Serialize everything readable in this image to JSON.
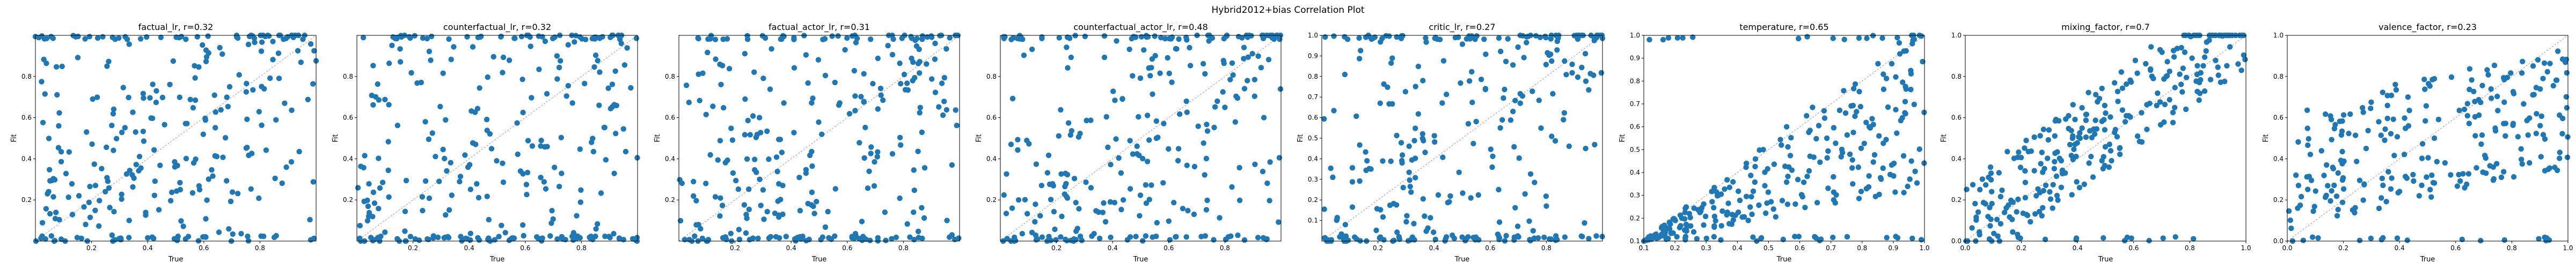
{
  "suptitle": "Hybrid2012+bias Correlation Plot",
  "colors": {
    "points": "#1f77b4",
    "diagonal": "#999999",
    "axes": "#000000"
  },
  "chart_data": [
    {
      "type": "scatter",
      "title": "factual_lr, r=0.32",
      "xlabel": "True",
      "ylabel": "Fit",
      "xlim": [
        0.0,
        1.0
      ],
      "ylim": [
        0.0,
        1.0
      ],
      "xticks": [
        0.2,
        0.4,
        0.6,
        0.8
      ],
      "yticks": [
        0.2,
        0.4,
        0.6,
        0.8
      ],
      "diagonal": true,
      "r": 0.32,
      "n_points": 300,
      "seed": 11,
      "pattern": "banded",
      "points": []
    },
    {
      "type": "scatter",
      "title": "counterfactual_lr, r=0.32",
      "xlabel": "True",
      "ylabel": "Fit",
      "xlim": [
        0.0,
        1.0
      ],
      "ylim": [
        0.0,
        1.0
      ],
      "xticks": [
        0.2,
        0.4,
        0.6,
        0.8
      ],
      "yticks": [
        0.2,
        0.4,
        0.6,
        0.8
      ],
      "diagonal": true,
      "r": 0.32,
      "n_points": 300,
      "seed": 23,
      "pattern": "banded",
      "points": []
    },
    {
      "type": "scatter",
      "title": "factual_actor_lr, r=0.31",
      "xlabel": "True",
      "ylabel": "Fit",
      "xlim": [
        0.0,
        1.0
      ],
      "ylim": [
        0.0,
        1.0
      ],
      "xticks": [
        0.2,
        0.4,
        0.6,
        0.8
      ],
      "yticks": [
        0.2,
        0.4,
        0.6,
        0.8
      ],
      "diagonal": true,
      "r": 0.31,
      "n_points": 300,
      "seed": 37,
      "pattern": "banded",
      "points": []
    },
    {
      "type": "scatter",
      "title": "counterfactual_actor_lr, r=0.48",
      "xlabel": "True",
      "ylabel": "Fit",
      "xlim": [
        0.0,
        1.0
      ],
      "ylim": [
        0.0,
        1.0
      ],
      "xticks": [
        0.2,
        0.4,
        0.6,
        0.8
      ],
      "yticks": [
        0.2,
        0.4,
        0.6,
        0.8
      ],
      "diagonal": true,
      "r": 0.48,
      "n_points": 300,
      "seed": 41,
      "pattern": "banded",
      "points": []
    },
    {
      "type": "scatter",
      "title": "critic_lr, r=0.27",
      "xlabel": "True",
      "ylabel": "Fit",
      "xlim": [
        0.0,
        1.0
      ],
      "ylim": [
        0.0,
        1.0
      ],
      "xticks": [
        0.2,
        0.4,
        0.6,
        0.8
      ],
      "yticks": [
        0.1,
        0.2,
        0.3,
        0.4,
        0.5,
        0.6,
        0.7,
        0.8,
        0.9,
        1.0
      ],
      "diagonal": true,
      "r": 0.27,
      "n_points": 300,
      "seed": 53,
      "pattern": "banded",
      "points": []
    },
    {
      "type": "scatter",
      "title": "temperature, r=0.65",
      "xlabel": "True",
      "ylabel": "Fit",
      "xlim": [
        0.1,
        1.0
      ],
      "ylim": [
        0.1,
        1.0
      ],
      "xticks": [
        0.1,
        0.2,
        0.3,
        0.4,
        0.5,
        0.6,
        0.7,
        0.8,
        0.9,
        1.0
      ],
      "yticks": [
        0.1,
        0.2,
        0.3,
        0.4,
        0.5,
        0.6,
        0.7,
        0.8,
        0.9,
        1.0
      ],
      "diagonal": true,
      "r": 0.65,
      "n_points": 300,
      "seed": 67,
      "pattern": "lower",
      "points": []
    },
    {
      "type": "scatter",
      "title": "mixing_factor, r=0.7",
      "xlabel": "True",
      "ylabel": "Fit",
      "xlim": [
        0.0,
        1.0
      ],
      "ylim": [
        0.0,
        1.0
      ],
      "xticks": [
        0.0,
        0.2,
        0.4,
        0.6,
        0.8,
        1.0
      ],
      "yticks": [
        0.0,
        0.2,
        0.4,
        0.6,
        0.8,
        1.0
      ],
      "diagonal": true,
      "r": 0.7,
      "n_points": 300,
      "seed": 79,
      "pattern": "tight",
      "points": []
    },
    {
      "type": "scatter",
      "title": "valence_factor, r=0.23",
      "xlabel": "True",
      "ylabel": "Fit",
      "xlim": [
        0.0,
        1.0
      ],
      "ylim": [
        0.0,
        1.0
      ],
      "xticks": [
        0.0,
        0.2,
        0.4,
        0.6,
        0.8,
        1.0
      ],
      "yticks": [
        0.0,
        0.2,
        0.4,
        0.6,
        0.8,
        1.0
      ],
      "diagonal": true,
      "r": 0.23,
      "n_points": 260,
      "seed": 97,
      "pattern": "loose",
      "points": []
    }
  ]
}
